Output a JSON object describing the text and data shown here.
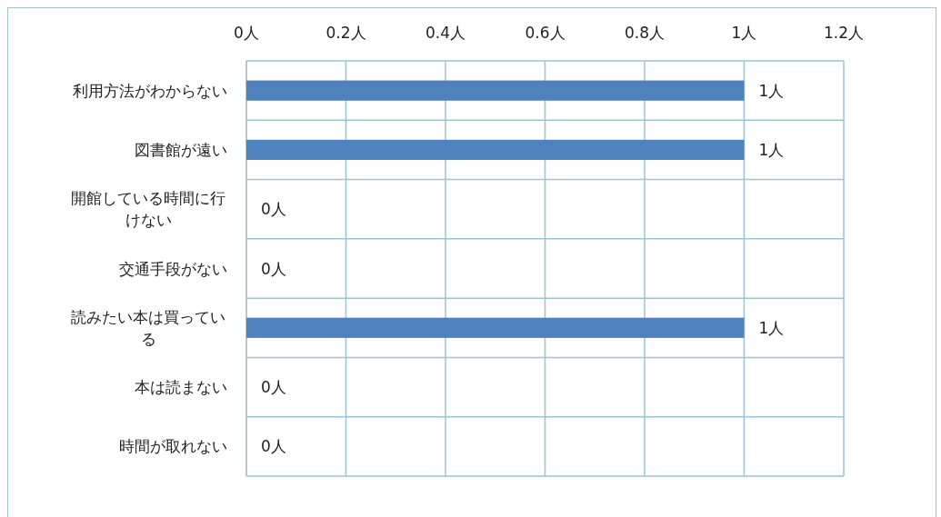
{
  "chart_data": {
    "type": "bar",
    "orientation": "horizontal",
    "categories": [
      "利用方法がわからない",
      "図書館が遠い",
      "開館している時間に行けない",
      "交通手段がない",
      "読みたい本は買っている",
      "本は読まない",
      "時間が取れない"
    ],
    "values": [
      1,
      1,
      0,
      0,
      1,
      0,
      0
    ],
    "value_labels": [
      "1人",
      "1人",
      "0人",
      "0人",
      "1人",
      "0人",
      "0人"
    ],
    "color": "#4f81bd",
    "xlim": [
      0,
      1.2
    ],
    "xticks": [
      {
        "value": 0,
        "label": "0人"
      },
      {
        "value": 0.2,
        "label": "0.2人"
      },
      {
        "value": 0.4,
        "label": "0.4人"
      },
      {
        "value": 0.6,
        "label": "0.6人"
      },
      {
        "value": 0.8,
        "label": "0.8人"
      },
      {
        "value": 1,
        "label": "1人"
      },
      {
        "value": 1.2,
        "label": "1.2人"
      }
    ],
    "grid": true
  }
}
